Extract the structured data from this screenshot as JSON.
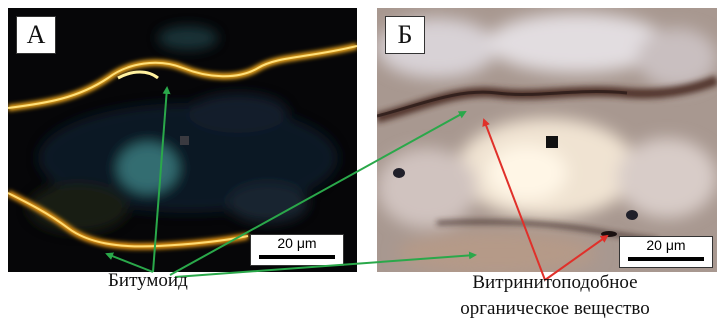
{
  "panel_a": {
    "letter": "А",
    "scale_label": "20 μm"
  },
  "panel_b": {
    "letter": "Б",
    "scale_label": "20 μm"
  },
  "labels": {
    "bitumoid": "Битумоид",
    "vitrinite_line1": "Витринитоподобное",
    "vitrinite_line2": "органическое вещество"
  },
  "colors": {
    "arrow_bitumoid": "#2aa84a",
    "arrow_vitrinite": "#e0302a",
    "fluorescence": "#f7a21e"
  }
}
